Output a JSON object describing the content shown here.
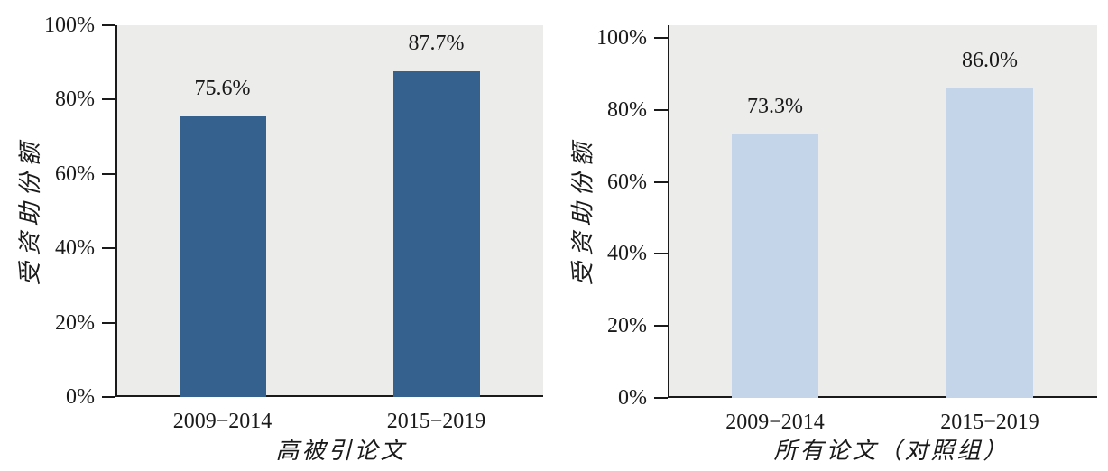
{
  "figure": {
    "background": "#ffffff",
    "text_color": "#1a1a1a",
    "axis_color": "#1a1a1a"
  },
  "chart_data": [
    {
      "type": "bar",
      "title": "",
      "xlabel": "高被引论文",
      "ylabel": "受资助份额",
      "categories": [
        "2009−2014",
        "2015−2019"
      ],
      "values": [
        75.6,
        87.7
      ],
      "value_labels": [
        "75.6%",
        "87.7%"
      ],
      "ylim": [
        0,
        100
      ],
      "yticks": [
        0,
        20,
        40,
        60,
        80,
        100
      ],
      "ytick_labels": [
        "0%",
        "20%",
        "40%",
        "60%",
        "80%",
        "100%"
      ],
      "grid": false,
      "legend": "none",
      "bar_color": "#35618f",
      "plot_bg": "#ececeb"
    },
    {
      "type": "bar",
      "title": "",
      "xlabel": "所有论文（对照组）",
      "ylabel": "受资助份额",
      "categories": [
        "2009−2014",
        "2015−2019"
      ],
      "values": [
        73.3,
        86.0
      ],
      "value_labels": [
        "73.3%",
        "86.0%"
      ],
      "ylim": [
        0,
        100
      ],
      "yticks": [
        0,
        20,
        40,
        60,
        80,
        100
      ],
      "ytick_labels": [
        "0%",
        "20%",
        "40%",
        "60%",
        "80%",
        "100%"
      ],
      "grid": false,
      "legend": "none",
      "bar_color": "#c4d5ea",
      "plot_bg": "#ececeb"
    }
  ]
}
